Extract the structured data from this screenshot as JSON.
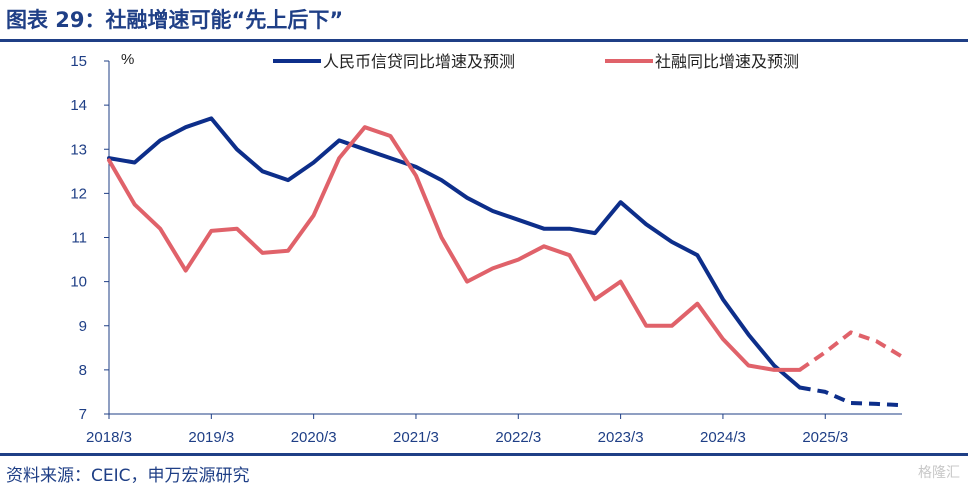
{
  "title": "图表 29：社融增速可能“先上后下”",
  "source": "资料来源：CEIC，申万宏源研究",
  "watermark": "格隆汇",
  "colors": {
    "title": "#1f3f86",
    "series_blue": "#0d2e8a",
    "series_red": "#e0626a",
    "axis": "#1f3f86"
  },
  "chart_data": {
    "type": "line",
    "ylabel": "%",
    "ylim": [
      7,
      15
    ],
    "yticks": [
      7,
      8,
      9,
      10,
      11,
      12,
      13,
      14,
      15
    ],
    "xlim": [
      0,
      31
    ],
    "xticks": [
      {
        "label": "2018/3",
        "q": 0
      },
      {
        "label": "2019/3",
        "q": 4
      },
      {
        "label": "2020/3",
        "q": 8
      },
      {
        "label": "2021/3",
        "q": 12
      },
      {
        "label": "2022/3",
        "q": 16
      },
      {
        "label": "2023/3",
        "q": 20
      },
      {
        "label": "2024/3",
        "q": 24
      },
      {
        "label": "2025/3",
        "q": 28
      }
    ],
    "legend_position": "top",
    "series": [
      {
        "name": "人民币信贷同比增速及预测",
        "color": "#0d2e8a",
        "actual": [
          [
            0,
            12.8
          ],
          [
            1,
            12.7
          ],
          [
            2,
            13.2
          ],
          [
            3,
            13.5
          ],
          [
            4,
            13.7
          ],
          [
            5,
            13.0
          ],
          [
            6,
            12.5
          ],
          [
            7,
            12.3
          ],
          [
            8,
            12.7
          ],
          [
            9,
            13.2
          ],
          [
            10,
            13.0
          ],
          [
            11,
            12.8
          ],
          [
            12,
            12.6
          ],
          [
            13,
            12.3
          ],
          [
            14,
            11.9
          ],
          [
            15,
            11.6
          ],
          [
            16,
            11.4
          ],
          [
            17,
            11.2
          ],
          [
            18,
            11.2
          ],
          [
            19,
            11.1
          ],
          [
            20,
            11.8
          ],
          [
            21,
            11.3
          ],
          [
            22,
            10.9
          ],
          [
            23,
            10.6
          ],
          [
            24,
            9.6
          ],
          [
            25,
            8.8
          ],
          [
            26,
            8.1
          ],
          [
            27,
            7.6
          ]
        ],
        "forecast": [
          [
            27,
            7.6
          ],
          [
            28,
            7.5
          ],
          [
            29,
            7.25
          ],
          [
            30,
            7.23
          ],
          [
            31,
            7.2
          ]
        ]
      },
      {
        "name": "社融同比增速及预测",
        "color": "#e0626a",
        "actual": [
          [
            0,
            12.75
          ],
          [
            1,
            11.75
          ],
          [
            2,
            11.2
          ],
          [
            3,
            10.25
          ],
          [
            4,
            11.15
          ],
          [
            5,
            11.2
          ],
          [
            6,
            10.65
          ],
          [
            7,
            10.7
          ],
          [
            8,
            11.5
          ],
          [
            9,
            12.8
          ],
          [
            10,
            13.5
          ],
          [
            11,
            13.3
          ],
          [
            12,
            12.4
          ],
          [
            13,
            11.0
          ],
          [
            14,
            10.0
          ],
          [
            15,
            10.3
          ],
          [
            16,
            10.5
          ],
          [
            17,
            10.8
          ],
          [
            18,
            10.6
          ],
          [
            19,
            9.6
          ],
          [
            20,
            10.0
          ],
          [
            21,
            9.0
          ],
          [
            22,
            9.0
          ],
          [
            23,
            9.5
          ],
          [
            24,
            8.7
          ],
          [
            25,
            8.1
          ],
          [
            26,
            8.0
          ],
          [
            27,
            8.0
          ]
        ],
        "forecast": [
          [
            27,
            8.0
          ],
          [
            28,
            8.4
          ],
          [
            29,
            8.85
          ],
          [
            30,
            8.65
          ],
          [
            31,
            8.3
          ]
        ]
      }
    ]
  }
}
